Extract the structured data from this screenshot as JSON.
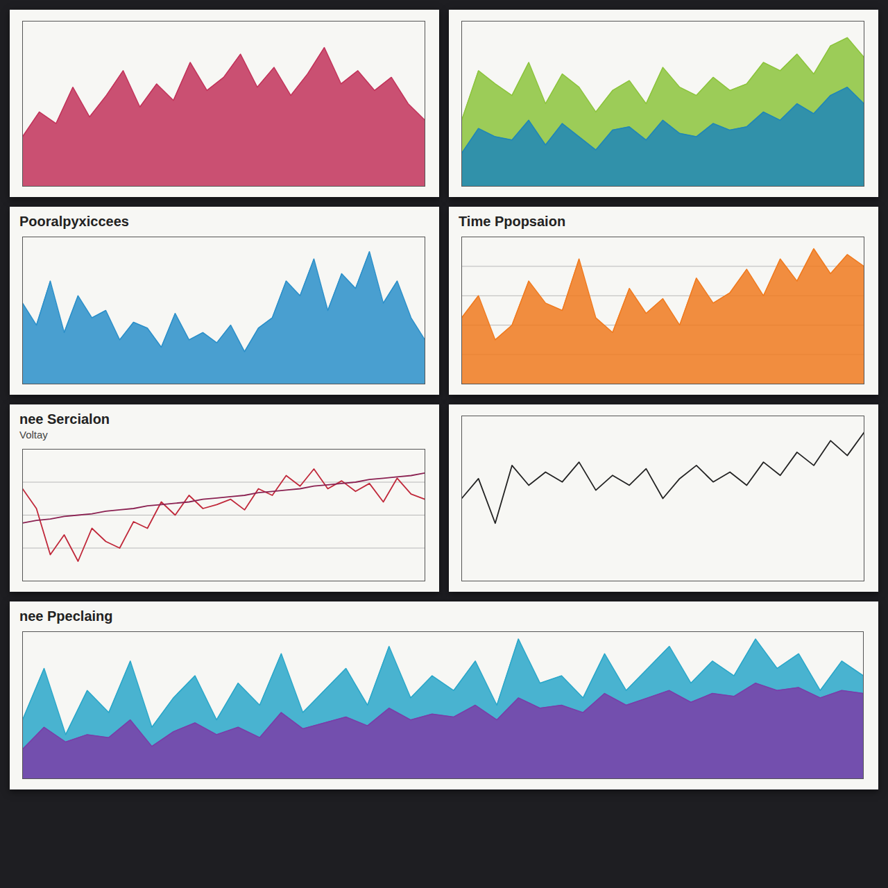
{
  "chart_data": [
    {
      "type": "area",
      "color": "#c2335a",
      "tick_labels": false,
      "x": [
        0,
        1,
        2,
        3,
        4,
        5,
        6,
        7,
        8,
        9,
        10,
        11,
        12,
        13,
        14,
        15,
        16,
        17,
        18,
        19,
        20,
        21,
        22,
        23,
        24
      ],
      "xlim": [
        0,
        24
      ],
      "ylim": [
        0,
        100
      ],
      "values": [
        30,
        45,
        38,
        60,
        42,
        55,
        70,
        48,
        62,
        52,
        75,
        58,
        66,
        80,
        60,
        72,
        55,
        68,
        84,
        62,
        70,
        58,
        66,
        50,
        40
      ]
    },
    {
      "type": "area",
      "tick_labels": false,
      "x": [
        0,
        1,
        2,
        3,
        4,
        5,
        6,
        7,
        8,
        9,
        10,
        11,
        12,
        13,
        14,
        15,
        16,
        17,
        18,
        19,
        20,
        21,
        22,
        23,
        24
      ],
      "xlim": [
        0,
        24
      ],
      "ylim": [
        0,
        100
      ],
      "series": [
        {
          "color": "#8cc43c",
          "values": [
            40,
            70,
            62,
            55,
            75,
            50,
            68,
            60,
            45,
            58,
            64,
            50,
            72,
            60,
            55,
            66,
            58,
            62,
            75,
            70,
            80,
            68,
            85,
            90,
            78
          ]
        },
        {
          "color": "#1f86b8",
          "values": [
            20,
            35,
            30,
            28,
            40,
            25,
            38,
            30,
            22,
            34,
            36,
            28,
            40,
            32,
            30,
            38,
            34,
            36,
            45,
            40,
            50,
            44,
            55,
            60,
            50
          ]
        }
      ]
    },
    {
      "type": "area",
      "title": "Pooralpyxiccees",
      "color": "#2a8fc9",
      "tick_labels": false,
      "x": [
        0,
        1,
        2,
        3,
        4,
        5,
        6,
        7,
        8,
        9,
        10,
        11,
        12,
        13,
        14,
        15,
        16,
        17,
        18,
        19,
        20,
        21,
        22,
        23,
        24,
        25,
        26,
        27,
        28,
        29
      ],
      "xlim": [
        0,
        29
      ],
      "ylim": [
        0,
        100
      ],
      "values": [
        55,
        40,
        70,
        35,
        60,
        45,
        50,
        30,
        42,
        38,
        25,
        48,
        30,
        35,
        28,
        40,
        22,
        38,
        45,
        70,
        60,
        85,
        50,
        75,
        65,
        90,
        55,
        70,
        45,
        30
      ]
    },
    {
      "type": "area",
      "title": "Time Ppopsaion",
      "color": "#f07a1e",
      "tick_labels": false,
      "grid": true,
      "x": [
        0,
        1,
        2,
        3,
        4,
        5,
        6,
        7,
        8,
        9,
        10,
        11,
        12,
        13,
        14,
        15,
        16,
        17,
        18,
        19,
        20,
        21,
        22,
        23,
        24
      ],
      "xlim": [
        0,
        24
      ],
      "ylim": [
        0,
        100
      ],
      "yticks": [
        0,
        20,
        40,
        60,
        80,
        100
      ],
      "values": [
        45,
        60,
        30,
        40,
        70,
        55,
        50,
        85,
        45,
        35,
        65,
        48,
        58,
        40,
        72,
        55,
        62,
        78,
        60,
        85,
        70,
        92,
        75,
        88,
        80
      ]
    },
    {
      "type": "line",
      "title": "nee Sercialon",
      "subtitle": "Voltay",
      "tick_labels": false,
      "grid": true,
      "x": [
        0,
        1,
        2,
        3,
        4,
        5,
        6,
        7,
        8,
        9,
        10,
        11,
        12,
        13,
        14,
        15,
        16,
        17,
        18,
        19,
        20,
        21,
        22,
        23,
        24,
        25,
        26,
        27,
        28,
        29
      ],
      "xlim": [
        0,
        29
      ],
      "ylim": [
        0,
        100
      ],
      "yticks": [
        0,
        25,
        50,
        75,
        100
      ],
      "series": [
        {
          "color": "#c0283a",
          "values": [
            70,
            55,
            20,
            35,
            15,
            40,
            30,
            25,
            45,
            40,
            60,
            50,
            65,
            55,
            58,
            62,
            54,
            70,
            65,
            80,
            72,
            85,
            70,
            76,
            68,
            74,
            60,
            78,
            66,
            62
          ]
        },
        {
          "color": "#8b2252",
          "values": [
            44,
            46,
            47,
            49,
            50,
            51,
            53,
            54,
            55,
            57,
            58,
            59,
            60,
            62,
            63,
            64,
            65,
            67,
            68,
            69,
            70,
            72,
            73,
            74,
            75,
            77,
            78,
            79,
            80,
            82
          ]
        }
      ]
    },
    {
      "type": "line",
      "color": "#222222",
      "tick_labels": false,
      "x": [
        0,
        1,
        2,
        3,
        4,
        5,
        6,
        7,
        8,
        9,
        10,
        11,
        12,
        13,
        14,
        15,
        16,
        17,
        18,
        19,
        20,
        21,
        22,
        23,
        24
      ],
      "xlim": [
        0,
        24
      ],
      "ylim": [
        0,
        100
      ],
      "values": [
        50,
        62,
        35,
        70,
        58,
        66,
        60,
        72,
        55,
        64,
        58,
        68,
        50,
        62,
        70,
        60,
        66,
        58,
        72,
        64,
        78,
        70,
        85,
        76,
        90
      ]
    },
    {
      "type": "area",
      "title": "nee Ppeclaing",
      "tick_labels": false,
      "x": [
        0,
        1,
        2,
        3,
        4,
        5,
        6,
        7,
        8,
        9,
        10,
        11,
        12,
        13,
        14,
        15,
        16,
        17,
        18,
        19,
        20,
        21,
        22,
        23,
        24,
        25,
        26,
        27,
        28,
        29,
        30,
        31,
        32,
        33,
        34,
        35,
        36,
        37,
        38,
        39
      ],
      "xlim": [
        0,
        39
      ],
      "ylim": [
        0,
        100
      ],
      "series": [
        {
          "color": "#2aa7c9",
          "values": [
            40,
            75,
            30,
            60,
            45,
            80,
            35,
            55,
            70,
            40,
            65,
            50,
            85,
            45,
            60,
            75,
            50,
            90,
            55,
            70,
            60,
            80,
            50,
            95,
            65,
            70,
            55,
            85,
            60,
            75,
            90,
            65,
            80,
            70,
            95,
            75,
            85,
            60,
            80,
            70
          ]
        },
        {
          "color": "#7a3da8",
          "values": [
            20,
            35,
            25,
            30,
            28,
            40,
            22,
            32,
            38,
            30,
            35,
            28,
            45,
            34,
            38,
            42,
            36,
            48,
            40,
            44,
            42,
            50,
            40,
            55,
            48,
            50,
            45,
            58,
            50,
            55,
            60,
            52,
            58,
            56,
            65,
            60,
            62,
            55,
            60,
            58
          ]
        }
      ]
    }
  ]
}
